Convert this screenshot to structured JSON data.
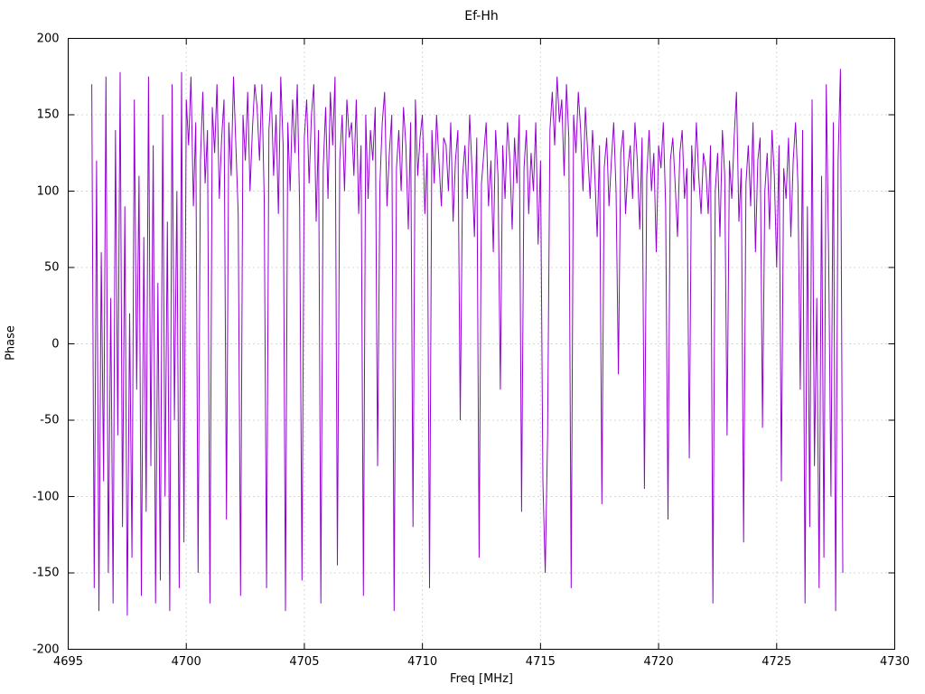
{
  "chart_data": {
    "type": "line",
    "title": "Ef-Hh",
    "xlabel": "Freq [MHz]",
    "ylabel": "Phase",
    "xlim": [
      4695,
      4730
    ],
    "ylim": [
      -200,
      200
    ],
    "x_ticks": [
      4695,
      4700,
      4705,
      4710,
      4715,
      4720,
      4725,
      4730
    ],
    "y_ticks": [
      -200,
      -150,
      -100,
      -50,
      0,
      50,
      100,
      150,
      200
    ],
    "grid": true,
    "legend": "none",
    "line_color": "#9400d3",
    "grid_color": "#a6bba6",
    "series": [
      {
        "name": "Ef-Hh",
        "x_start": 4696.0,
        "x_step": 0.1,
        "values": [
          170,
          -160,
          120,
          -175,
          60,
          -90,
          175,
          -150,
          30,
          -170,
          140,
          -60,
          178,
          -120,
          90,
          -178,
          20,
          -140,
          160,
          -30,
          110,
          -165,
          70,
          -110,
          175,
          -80,
          130,
          -170,
          40,
          -155,
          150,
          -100,
          80,
          -175,
          170,
          -50,
          100,
          -160,
          178,
          -130,
          160,
          130,
          175,
          90,
          145,
          -150,
          120,
          165,
          105,
          140,
          -170,
          155,
          125,
          170,
          95,
          135,
          160,
          -115,
          145,
          110,
          175,
          130,
          85,
          -165,
          150,
          120,
          165,
          100,
          140,
          170,
          155,
          120,
          170,
          95,
          -160,
          140,
          165,
          110,
          150,
          85,
          175,
          130,
          -175,
          145,
          100,
          160,
          125,
          170,
          90,
          -155,
          135,
          160,
          105,
          150,
          170,
          80,
          140,
          -170,
          115,
          155,
          95,
          165,
          130,
          175,
          -145,
          120,
          150,
          100,
          160,
          135,
          145,
          110,
          160,
          85,
          130,
          -165,
          150,
          95,
          140,
          120,
          155,
          -80,
          105,
          145,
          165,
          90,
          125,
          150,
          -175,
          115,
          140,
          100,
          155,
          130,
          75,
          145,
          -120,
          160,
          110,
          135,
          150,
          85,
          125,
          -160,
          140,
          105,
          150,
          120,
          90,
          135,
          130,
          100,
          145,
          80,
          120,
          140,
          -50,
          110,
          130,
          95,
          150,
          115,
          70,
          135,
          -140,
          105,
          125,
          145,
          90,
          120,
          60,
          140,
          110,
          -30,
          130,
          95,
          145,
          120,
          75,
          135,
          105,
          150,
          -110,
          115,
          140,
          85,
          125,
          100,
          145,
          65,
          120,
          -90,
          -150,
          -60,
          140,
          165,
          130,
          175,
          145,
          160,
          110,
          170,
          135,
          -160,
          150,
          125,
          165,
          140,
          100,
          155,
          125,
          95,
          140,
          110,
          70,
          130,
          -105,
          115,
          135,
          90,
          120,
          145,
          100,
          -20,
          125,
          140,
          85,
          115,
          130,
          95,
          145,
          120,
          75,
          135,
          -95,
          110,
          140,
          100,
          125,
          60,
          130,
          115,
          145,
          90,
          -115,
          120,
          135,
          105,
          70,
          125,
          140,
          95,
          115,
          -75,
          130,
          100,
          145,
          110,
          85,
          125,
          115,
          85,
          130,
          -170,
          100,
          125,
          70,
          140,
          110,
          -60,
          120,
          95,
          135,
          165,
          80,
          115,
          -130,
          105,
          130,
          90,
          145,
          60,
          120,
          135,
          -55,
          100,
          125,
          75,
          140,
          110,
          50,
          130,
          -90,
          115,
          95,
          135,
          70,
          120,
          145,
          105,
          -30,
          140,
          -170,
          90,
          -120,
          160,
          -80,
          30,
          -160,
          110,
          -140,
          170,
          60,
          -100,
          145,
          -175,
          120,
          180,
          -150
        ]
      }
    ]
  }
}
